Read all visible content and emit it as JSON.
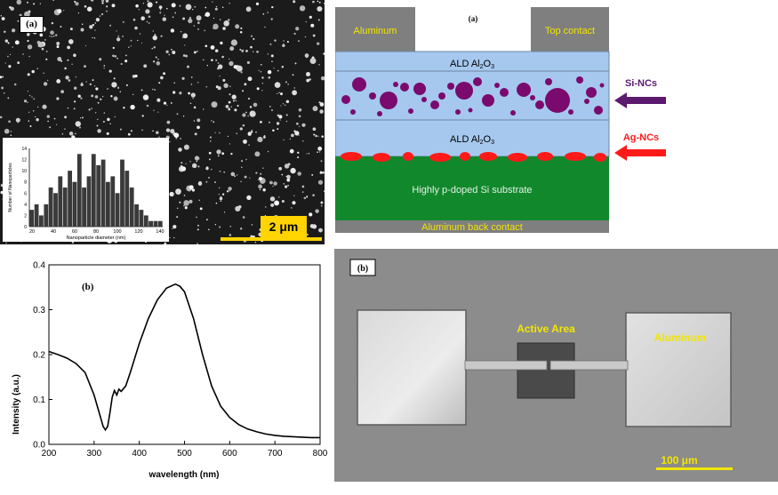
{
  "sem": {
    "label": "(a)",
    "scale_bar": "2 μm",
    "histogram": {
      "ylabel": "Number of Nanoparticles",
      "xlabel": "Nanoparticle diameter (nm)",
      "xticks": [
        "20",
        "40",
        "60",
        "80",
        "100",
        "120",
        "140"
      ],
      "yticks": [
        "0",
        "2",
        "4",
        "6",
        "8",
        "10",
        "12",
        "14"
      ],
      "counts": [
        3,
        4,
        2,
        4,
        7,
        6,
        9,
        7,
        10,
        8,
        13,
        7,
        9,
        13,
        11,
        12,
        8,
        9,
        6,
        12,
        10,
        7,
        4,
        3,
        2,
        1,
        1,
        1
      ],
      "bar_color": "#3a3a3a"
    }
  },
  "schematic": {
    "label": "(a)",
    "top_left": "Aluminum",
    "top_right": "Top contact",
    "layer_top": "ALD Al",
    "layer_top_sub": "2",
    "layer_top_end": "O",
    "layer_top_sub2": "3",
    "layer_mid": "ALD Al",
    "layer_mid_sub": "2",
    "layer_mid_end": "O",
    "layer_mid_sub2": "3",
    "substrate": "Highly p-doped Si substrate",
    "back_contact": "Aluminum back contact",
    "si_label": "Si-NCs",
    "ag_label": "Ag-NCs",
    "colors": {
      "al": "#7f7f7f",
      "oxide": "#a6c8ee",
      "si_nc": "#7a0a6e",
      "ag_nc": "#ff1a1a",
      "substrate": "#12882c"
    }
  },
  "chart_data": {
    "type": "line",
    "label": "(b)",
    "xlabel": "wavelength (nm)",
    "ylabel": "Intensity (a.u.)",
    "xlim": [
      200,
      800
    ],
    "ylim": [
      0.0,
      0.4
    ],
    "xticks": [
      200,
      300,
      400,
      500,
      600,
      700,
      800
    ],
    "yticks": [
      0.0,
      0.1,
      0.2,
      0.3,
      0.4
    ],
    "xtick_labels": [
      "200",
      "300",
      "400",
      "500",
      "600",
      "700",
      "800"
    ],
    "ytick_labels": [
      "0.0",
      "0.1",
      "0.2",
      "0.3",
      "0.4"
    ],
    "series": [
      {
        "x": [
          200,
          220,
          240,
          260,
          280,
          300,
          310,
          320,
          325,
          330,
          335,
          340,
          345,
          350,
          355,
          360,
          370,
          380,
          400,
          420,
          440,
          460,
          480,
          490,
          500,
          520,
          540,
          560,
          580,
          600,
          620,
          640,
          660,
          680,
          700,
          720,
          740,
          760,
          780,
          800
        ],
        "y": [
          0.207,
          0.2,
          0.192,
          0.18,
          0.16,
          0.11,
          0.075,
          0.04,
          0.032,
          0.04,
          0.07,
          0.105,
          0.12,
          0.11,
          0.123,
          0.118,
          0.13,
          0.16,
          0.225,
          0.28,
          0.322,
          0.348,
          0.357,
          0.352,
          0.34,
          0.28,
          0.2,
          0.13,
          0.085,
          0.06,
          0.044,
          0.034,
          0.028,
          0.023,
          0.02,
          0.018,
          0.017,
          0.016,
          0.015,
          0.015
        ]
      }
    ]
  },
  "device": {
    "label": "(b)",
    "active_area": "Active Area",
    "aluminum": "Aluminum",
    "scale_bar": "100 μm"
  }
}
